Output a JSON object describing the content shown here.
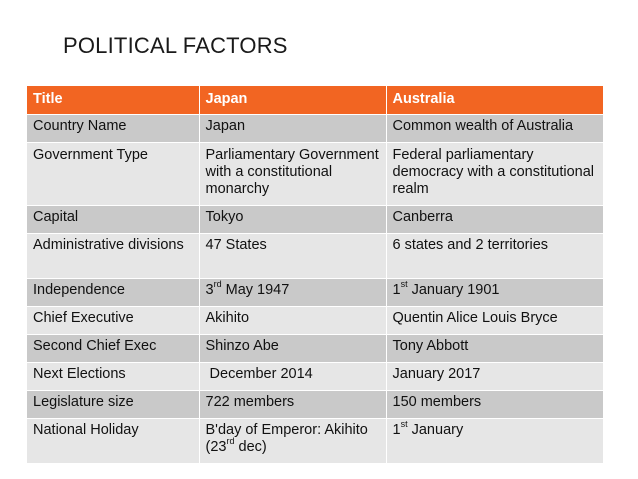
{
  "slide": {
    "title": "POLITICAL FACTORS"
  },
  "colors": {
    "header_bg": "#f26522",
    "row_dark": "#c9c9c9",
    "row_light": "#e6e6e6"
  },
  "table": {
    "headers": [
      "Title",
      "Japan",
      "Australia"
    ],
    "rows": [
      {
        "title": "Country Name",
        "japan": "Japan",
        "australia": "Common wealth of Australia"
      },
      {
        "title": "Government Type",
        "japan": "Parliamentary Government with a constitutional monarchy",
        "australia": "Federal parliamentary democracy with a constitutional realm"
      },
      {
        "title": "Capital",
        "japan": "Tokyo",
        "australia": "Canberra"
      },
      {
        "title": "Administrative divisions",
        "japan": "47 States",
        "australia": "6 states and 2 territories"
      },
      {
        "title": "Independence",
        "japan": {
          "pre": "3",
          "sup": "rd",
          "post": " May 1947"
        },
        "australia": {
          "pre": "1",
          "sup": "st",
          "post": " January 1901"
        }
      },
      {
        "title": "Chief Executive",
        "japan": "Akihito",
        "australia": "Quentin Alice Louis Bryce"
      },
      {
        "title": "Second Chief Exec",
        "japan": "Shinzo Abe",
        "australia": "Tony Abbott"
      },
      {
        "title": "Next Elections",
        "japan": " December 2014",
        "australia": "January 2017"
      },
      {
        "title": "Legislature size",
        "japan": "722 members",
        "australia": "150 members"
      },
      {
        "title": "National Holiday",
        "japan": {
          "pre": "B'day of Emperor: Akihito (23",
          "sup": "rd",
          "post": " dec)"
        },
        "australia": {
          "pre": "1",
          "sup": "st",
          "post": " January"
        }
      }
    ]
  }
}
